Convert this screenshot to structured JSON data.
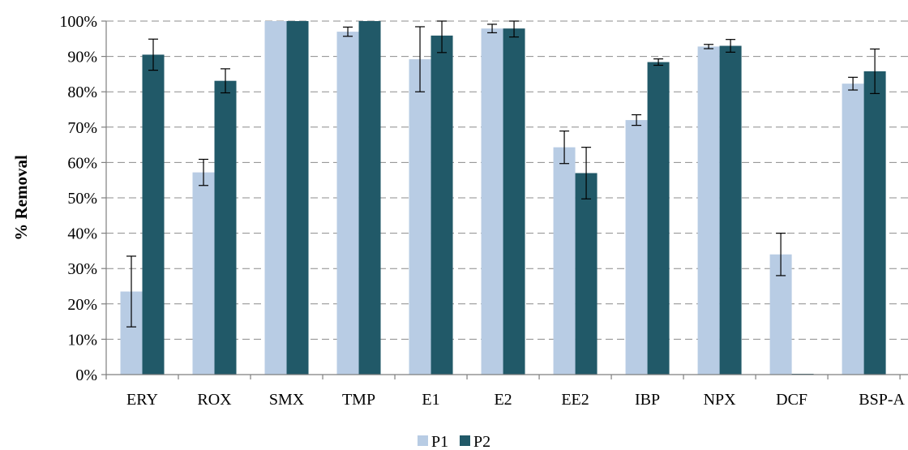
{
  "chart_data": {
    "type": "bar",
    "ylabel": "% Removal",
    "xlabel": "",
    "ylim": [
      0,
      100
    ],
    "yticks": [
      0,
      10,
      20,
      30,
      40,
      50,
      60,
      70,
      80,
      90,
      100
    ],
    "ytick_labels": [
      "0%",
      "10%",
      "20%",
      "30%",
      "40%",
      "50%",
      "60%",
      "70%",
      "80%",
      "90%",
      "100%"
    ],
    "grid": "horizontal-dashed",
    "legend": "bottom-center",
    "categories": [
      "ERY",
      "ROX",
      "SMX",
      "TMP",
      "E1",
      "E2",
      "EE2",
      "IBP",
      "NPX",
      "DCF",
      "BSP-A"
    ],
    "series": [
      {
        "name": "P1",
        "color": "#b8cce4",
        "values": [
          23.5,
          57.2,
          100,
          97.0,
          89.2,
          97.9,
          64.3,
          72.0,
          92.8,
          34.0,
          82.3
        ],
        "errors": [
          10.0,
          3.7,
          0,
          1.3,
          9.2,
          1.2,
          4.6,
          1.5,
          0.6,
          6.0,
          1.8
        ]
      },
      {
        "name": "P2",
        "color": "#215968",
        "values": [
          90.5,
          83.1,
          100,
          100,
          95.9,
          97.9,
          57.0,
          88.4,
          93.0,
          0,
          85.8
        ],
        "errors": [
          4.4,
          3.4,
          0,
          0,
          4.8,
          2.4,
          7.3,
          0.9,
          1.8,
          0,
          6.3
        ]
      }
    ]
  }
}
